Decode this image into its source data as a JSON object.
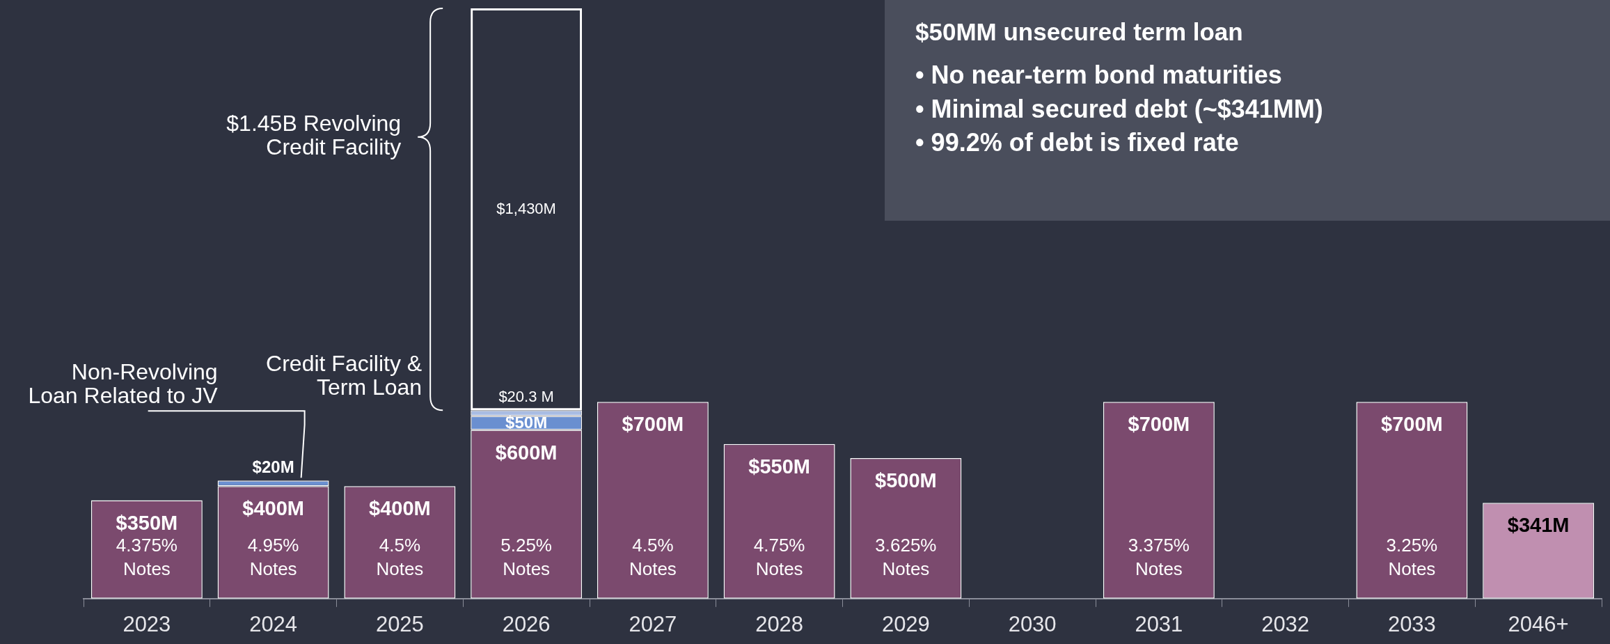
{
  "chart_data": {
    "type": "bar",
    "stacked": true,
    "title": "$50MM unsecured term loan",
    "categories": [
      "2023",
      "2024",
      "2025",
      "2026",
      "2027",
      "2028",
      "2029",
      "2030",
      "2031",
      "2032",
      "2033",
      "2046+"
    ],
    "series": [
      {
        "colors": [
          "#7b4a6e",
          "#7b4a6e",
          "#7b4a6e",
          "#7b4a6e",
          "#7b4a6e",
          "#7b4a6e",
          "#7b4a6e",
          "#7b4a6e",
          "#7b4a6e",
          "#7b4a6e",
          "#7b4a6e",
          "#c08fb0"
        ],
        "values": [
          350,
          400,
          400,
          600,
          700,
          550,
          500,
          null,
          700,
          null,
          700,
          341
        ],
        "value_labels": [
          "$350M",
          "$400M",
          "$400M",
          "$600M",
          "$700M",
          "$550M",
          "$500M",
          null,
          "$700M",
          null,
          "$700M",
          "$341M"
        ]
      },
      {
        "color": "#6a8fd0",
        "values": [
          null,
          20,
          null,
          50,
          null,
          null,
          null,
          null,
          null,
          null,
          null,
          null
        ],
        "value_labels": [
          null,
          "$20M",
          null,
          "$50M",
          null,
          null,
          null,
          null,
          null,
          null,
          null,
          null
        ]
      },
      {
        "color": "#a9bde3",
        "values": [
          null,
          null,
          null,
          20.3,
          null,
          null,
          null,
          null,
          null,
          null,
          null,
          null
        ],
        "value_labels": [
          null,
          null,
          null,
          "$20.3 M",
          null,
          null,
          null,
          null,
          null,
          null,
          null,
          null
        ]
      },
      {
        "color": "#ffffff",
        "line_style": "dashed",
        "values": [
          null,
          null,
          null,
          1430,
          null,
          null,
          null,
          null,
          null,
          null,
          null,
          null
        ],
        "value_labels": [
          null,
          null,
          null,
          "$1,430M",
          null,
          null,
          null,
          null,
          null,
          null,
          null,
          null
        ]
      }
    ],
    "ylim": [
      0,
      2110
    ],
    "tick_labels": "x",
    "legend": false,
    "grid": false,
    "annotations": [
      "• No near-term bond maturities",
      "• Minimal secured debt (~$341MM)",
      "• 99.2% of debt is fixed rate",
      "$1.45B Revolving\nCredit Facility",
      "Credit Facility &\nTerm Loan",
      "Non-Revolving\nLoan Related to JV",
      "4.375%\nNotes",
      "4.95%\nNotes",
      "4.5%\nNotes",
      "5.25%\nNotes",
      "4.5%\nNotes",
      "4.75%\nNotes",
      "3.625%\nNotes",
      "3.375%\nNotes",
      "3.25%\nNotes"
    ]
  }
}
